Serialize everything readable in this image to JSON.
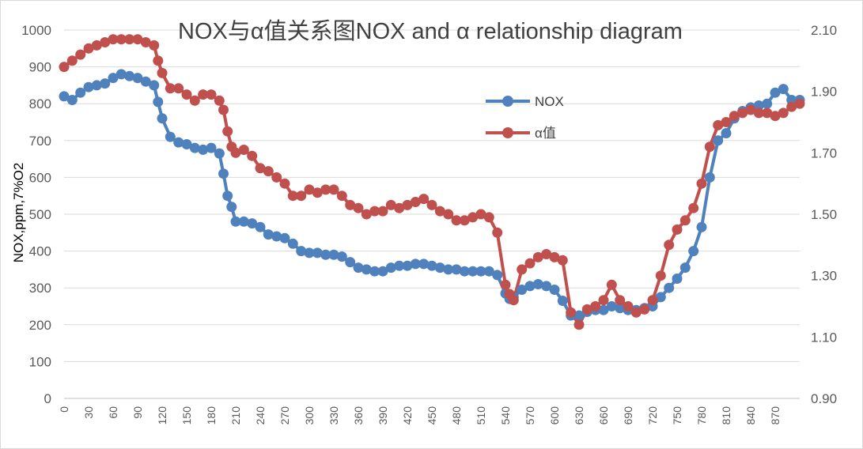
{
  "chart_data": {
    "type": "line",
    "title": "NOX与α值关系图NOX and α relationship diagram",
    "ylabel": "NOX,ppm,7%O2",
    "y2label": "",
    "ylim": [
      0,
      1000
    ],
    "y2lim": [
      0.9,
      2.1
    ],
    "xlim": [
      0,
      900
    ],
    "yticks": [
      "0",
      "100",
      "200",
      "300",
      "400",
      "500",
      "600",
      "700",
      "800",
      "900",
      "1000"
    ],
    "y2ticks": [
      "0.90",
      "1.10",
      "1.30",
      "1.50",
      "1.70",
      "1.90",
      "2.10"
    ],
    "xticks": [
      "0",
      "30",
      "60",
      "90",
      "120",
      "150",
      "180",
      "210",
      "240",
      "270",
      "300",
      "330",
      "360",
      "390",
      "420",
      "450",
      "480",
      "510",
      "540",
      "570",
      "600",
      "630",
      "660",
      "690",
      "720",
      "750",
      "780",
      "810",
      "840",
      "870"
    ],
    "grid": "horizontal",
    "legend_position": "top-right",
    "series": [
      {
        "name": "NOX",
        "axis": "left",
        "color": "#4f81bd",
        "x": [
          0,
          10,
          20,
          30,
          40,
          50,
          60,
          70,
          80,
          90,
          100,
          110,
          115,
          120,
          130,
          140,
          150,
          160,
          170,
          180,
          190,
          195,
          200,
          205,
          210,
          220,
          230,
          240,
          250,
          260,
          270,
          280,
          290,
          300,
          310,
          320,
          330,
          340,
          350,
          360,
          370,
          380,
          390,
          400,
          410,
          420,
          430,
          440,
          450,
          460,
          470,
          480,
          490,
          500,
          510,
          520,
          530,
          540,
          545,
          550,
          560,
          570,
          580,
          590,
          600,
          610,
          620,
          630,
          640,
          650,
          660,
          670,
          680,
          690,
          700,
          710,
          720,
          730,
          740,
          750,
          760,
          770,
          780,
          790,
          800,
          810,
          820,
          830,
          840,
          850,
          860,
          870,
          880,
          890,
          900
        ],
        "values": [
          820,
          810,
          830,
          845,
          850,
          855,
          870,
          880,
          875,
          870,
          860,
          850,
          805,
          760,
          710,
          695,
          690,
          680,
          675,
          680,
          665,
          610,
          550,
          520,
          480,
          480,
          475,
          465,
          445,
          440,
          435,
          420,
          400,
          395,
          395,
          390,
          390,
          385,
          370,
          355,
          350,
          345,
          345,
          355,
          360,
          360,
          365,
          365,
          360,
          355,
          350,
          350,
          345,
          345,
          345,
          345,
          335,
          285,
          270,
          275,
          295,
          305,
          310,
          305,
          295,
          265,
          225,
          225,
          235,
          240,
          240,
          250,
          245,
          240,
          240,
          245,
          250,
          275,
          300,
          325,
          355,
          400,
          465,
          600,
          700,
          720,
          760,
          780,
          790,
          795,
          800,
          830,
          840,
          810,
          810
        ]
      },
      {
        "name": "α值",
        "axis": "right",
        "color": "#c0504d",
        "x": [
          0,
          10,
          20,
          30,
          40,
          50,
          60,
          70,
          80,
          90,
          100,
          110,
          115,
          120,
          130,
          140,
          150,
          160,
          170,
          180,
          190,
          195,
          200,
          205,
          210,
          220,
          230,
          240,
          250,
          260,
          270,
          280,
          290,
          300,
          310,
          320,
          330,
          340,
          350,
          360,
          370,
          380,
          390,
          400,
          410,
          420,
          430,
          440,
          450,
          460,
          470,
          480,
          490,
          500,
          510,
          520,
          530,
          540,
          545,
          550,
          560,
          570,
          580,
          590,
          600,
          610,
          620,
          630,
          640,
          650,
          660,
          670,
          680,
          690,
          700,
          710,
          720,
          730,
          740,
          750,
          760,
          770,
          780,
          790,
          800,
          810,
          820,
          830,
          840,
          850,
          860,
          870,
          880,
          890,
          900
        ],
        "values": [
          1.98,
          2.0,
          2.02,
          2.04,
          2.05,
          2.06,
          2.07,
          2.07,
          2.07,
          2.07,
          2.06,
          2.05,
          2.0,
          1.96,
          1.91,
          1.91,
          1.89,
          1.87,
          1.89,
          1.89,
          1.87,
          1.84,
          1.77,
          1.72,
          1.7,
          1.71,
          1.69,
          1.65,
          1.64,
          1.62,
          1.6,
          1.56,
          1.56,
          1.58,
          1.57,
          1.58,
          1.58,
          1.56,
          1.53,
          1.52,
          1.5,
          1.51,
          1.51,
          1.53,
          1.52,
          1.53,
          1.54,
          1.55,
          1.53,
          1.51,
          1.5,
          1.48,
          1.48,
          1.49,
          1.5,
          1.49,
          1.44,
          1.27,
          1.24,
          1.22,
          1.32,
          1.34,
          1.36,
          1.37,
          1.36,
          1.35,
          1.18,
          1.14,
          1.19,
          1.2,
          1.22,
          1.27,
          1.22,
          1.2,
          1.18,
          1.19,
          1.22,
          1.3,
          1.4,
          1.45,
          1.48,
          1.52,
          1.6,
          1.72,
          1.79,
          1.8,
          1.82,
          1.83,
          1.84,
          1.83,
          1.83,
          1.82,
          1.83,
          1.85,
          1.86
        ]
      }
    ]
  }
}
